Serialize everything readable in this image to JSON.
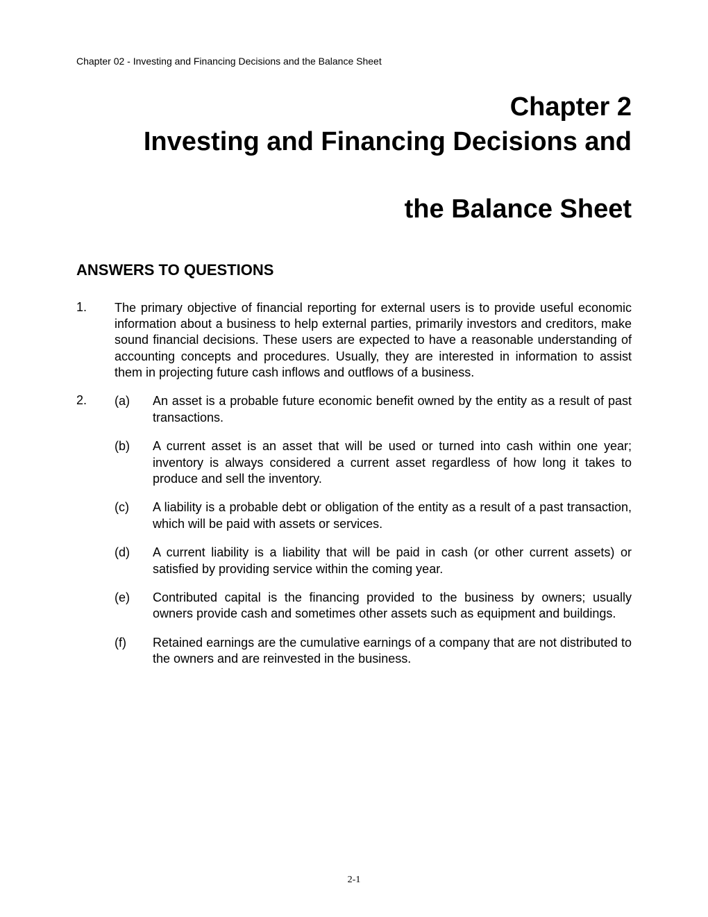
{
  "header": "Chapter 02 - Investing and Financing Decisions and the Balance Sheet",
  "title_line1": "Chapter 2",
  "title_line2": "Investing and Financing Decisions and",
  "title_line3": "the Balance Sheet",
  "section_heading": "ANSWERS TO QUESTIONS",
  "questions": [
    {
      "number": "1.",
      "text": "The primary objective of financial reporting for external users is to provide useful economic information about a business to help external parties, primarily investors and creditors, make sound financial decisions.  These users are expected to have a reasonable understanding of accounting concepts and procedures.  Usually, they are interested in information to assist them in projecting future cash inflows and outflows of a business."
    }
  ],
  "question2_number": "2.",
  "sub_items": [
    {
      "letter": "(a)",
      "text": "An asset is a probable future economic benefit owned by the entity as a result of past transactions."
    },
    {
      "letter": "(b)",
      "text": "A current asset is an asset that will be used or turned into cash within one year; inventory is always considered a current asset regardless of how long it takes to produce and sell the inventory."
    },
    {
      "letter": "(c)",
      "text": "A liability is a probable debt or obligation of the entity as a result of a past transaction, which will be paid with assets or services."
    },
    {
      "letter": "(d)",
      "text": "A current liability is a liability that will be paid in cash (or other current assets) or satisfied by providing service within the coming year."
    },
    {
      "letter": "(e)",
      "text": "Contributed capital is the financing provided to the business by owners; usually owners provide cash and sometimes other assets such as equipment and buildings."
    },
    {
      "letter": "(f)",
      "text": "Retained earnings are the cumulative earnings of a company that are not distributed to the owners and are reinvested in the business."
    }
  ],
  "page_number": "2-1"
}
